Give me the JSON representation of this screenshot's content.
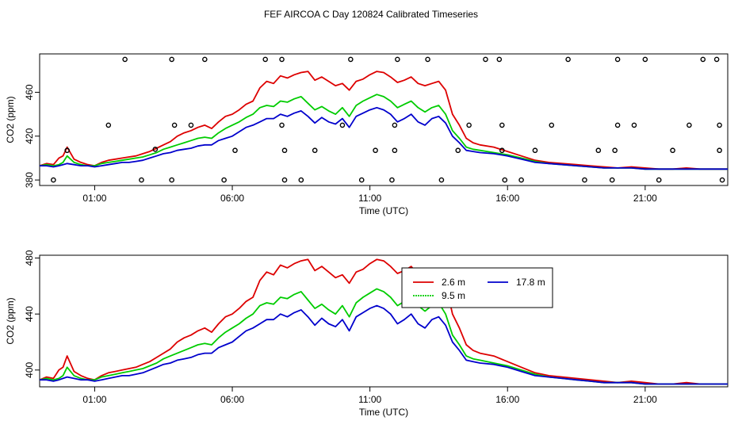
{
  "figure_title": "FEF AIRCOA C  Day 120824  Calibrated Timeseries",
  "colors": {
    "2.6 m": "#dd0000",
    "9.5 m": "#00cc00",
    "17.8 m": "#0000cc",
    "flags": "#000000"
  },
  "chart_data": [
    {
      "type": "line",
      "title": "FEF AIRCOA C  Day 120824  Calibrated Timeseries",
      "xlabel": "Time (UTC)",
      "ylabel": "CO2 (ppm)",
      "x_tick_labels": [
        "01:00",
        "06:00",
        "11:00",
        "16:00",
        "21:00"
      ],
      "x_ticks": [
        1,
        6,
        11,
        16,
        21
      ],
      "y_tick_labels": [
        "380",
        "420",
        "460"
      ],
      "y_ticks": [
        380,
        420,
        460
      ],
      "xlim": [
        -1.0,
        24.0
      ],
      "ylim": [
        375,
        495
      ],
      "series_ref": "shared_series",
      "flags": {
        "description": "open-circle flag markers",
        "points": [
          [
            -0.5,
            380
          ],
          [
            1.5,
            430
          ],
          [
            0.0,
            407
          ],
          [
            2.1,
            490
          ],
          [
            2.7,
            380
          ],
          [
            3.2,
            408
          ],
          [
            3.8,
            380
          ],
          [
            3.8,
            490
          ],
          [
            3.9,
            430
          ],
          [
            4.5,
            430
          ],
          [
            5.0,
            490
          ],
          [
            5.7,
            380
          ],
          [
            6.1,
            407
          ],
          [
            7.2,
            490
          ],
          [
            7.8,
            490
          ],
          [
            7.8,
            430
          ],
          [
            7.9,
            407
          ],
          [
            7.9,
            380
          ],
          [
            8.5,
            380
          ],
          [
            9.0,
            407
          ],
          [
            10.0,
            430
          ],
          [
            10.3,
            490
          ],
          [
            10.7,
            380
          ],
          [
            11.2,
            407
          ],
          [
            11.8,
            380
          ],
          [
            11.9,
            407
          ],
          [
            11.9,
            430
          ],
          [
            12.0,
            490
          ],
          [
            13.1,
            490
          ],
          [
            13.6,
            380
          ],
          [
            14.2,
            407
          ],
          [
            14.6,
            430
          ],
          [
            15.2,
            490
          ],
          [
            15.7,
            490
          ],
          [
            15.8,
            430
          ],
          [
            15.8,
            407
          ],
          [
            15.9,
            380
          ],
          [
            16.5,
            380
          ],
          [
            17.0,
            407
          ],
          [
            17.6,
            430
          ],
          [
            18.2,
            490
          ],
          [
            18.8,
            380
          ],
          [
            19.3,
            407
          ],
          [
            19.8,
            380
          ],
          [
            19.9,
            407
          ],
          [
            20.0,
            430
          ],
          [
            20.0,
            490
          ],
          [
            20.6,
            430
          ],
          [
            21.0,
            490
          ],
          [
            21.5,
            380
          ],
          [
            22.0,
            407
          ],
          [
            22.6,
            430
          ],
          [
            23.1,
            490
          ],
          [
            23.6,
            490
          ],
          [
            23.7,
            430
          ],
          [
            23.7,
            407
          ],
          [
            23.8,
            380
          ]
        ]
      }
    },
    {
      "type": "line",
      "xlabel": "Time (UTC)",
      "ylabel": "CO2 (ppm)",
      "x_tick_labels": [
        "01:00",
        "06:00",
        "11:00",
        "16:00",
        "21:00"
      ],
      "x_ticks": [
        1,
        6,
        11,
        16,
        21
      ],
      "y_tick_labels": [
        "400",
        "440",
        "480"
      ],
      "y_ticks": [
        400,
        440,
        480
      ],
      "xlim": [
        -1.0,
        24.0
      ],
      "ylim": [
        388,
        482
      ],
      "series_ref": "shared_series",
      "legend": {
        "placement": "top-right-inside",
        "entries": [
          "2.6 m",
          "17.8 m",
          "9.5 m"
        ]
      }
    }
  ],
  "shared_series": {
    "x": [
      -1.0,
      -0.75,
      -0.5,
      -0.3,
      -0.15,
      0.0,
      0.25,
      0.5,
      0.75,
      1.0,
      1.25,
      1.5,
      1.75,
      2.0,
      2.25,
      2.5,
      2.75,
      3.0,
      3.25,
      3.5,
      3.75,
      4.0,
      4.25,
      4.5,
      4.75,
      5.0,
      5.25,
      5.5,
      5.75,
      6.0,
      6.25,
      6.5,
      6.75,
      7.0,
      7.25,
      7.5,
      7.75,
      8.0,
      8.25,
      8.5,
      8.75,
      9.0,
      9.25,
      9.5,
      9.75,
      10.0,
      10.25,
      10.5,
      10.75,
      11.0,
      11.25,
      11.5,
      11.75,
      12.0,
      12.25,
      12.5,
      12.75,
      13.0,
      13.25,
      13.5,
      13.75,
      14.0,
      14.25,
      14.5,
      14.75,
      15.0,
      15.5,
      16.0,
      16.5,
      17.0,
      17.5,
      18.0,
      18.5,
      19.0,
      19.5,
      20.0,
      20.5,
      21.0,
      21.5,
      22.0,
      22.5,
      23.0,
      23.5,
      24.0
    ],
    "series": [
      {
        "name": "2.6 m",
        "color": "#dd0000",
        "values": [
          393,
          395,
          394,
          400,
          402,
          410,
          399,
          396,
          394,
          393,
          396,
          398,
          399,
          400,
          401,
          402,
          404,
          406,
          409,
          412,
          415,
          420,
          423,
          425,
          428,
          430,
          427,
          433,
          438,
          440,
          444,
          449,
          452,
          464,
          470,
          468,
          475,
          473,
          476,
          478,
          479,
          471,
          474,
          470,
          466,
          468,
          462,
          470,
          472,
          476,
          479,
          478,
          474,
          469,
          471,
          474,
          468,
          466,
          468,
          470,
          462,
          440,
          430,
          418,
          414,
          412,
          410,
          406,
          402,
          398,
          396,
          395,
          394,
          393,
          392,
          391,
          392,
          391,
          390,
          390,
          391,
          390,
          390,
          390
        ]
      },
      {
        "name": "9.5 m",
        "color": "#00cc00",
        "values": [
          393,
          394,
          393,
          394,
          396,
          402,
          396,
          394,
          393,
          393,
          395,
          396,
          397,
          398,
          399,
          400,
          401,
          403,
          405,
          408,
          410,
          412,
          414,
          416,
          418,
          419,
          418,
          423,
          427,
          430,
          433,
          437,
          440,
          446,
          448,
          447,
          452,
          451,
          454,
          456,
          450,
          444,
          447,
          443,
          440,
          446,
          438,
          448,
          452,
          455,
          458,
          456,
          452,
          446,
          449,
          452,
          446,
          442,
          446,
          448,
          440,
          425,
          418,
          410,
          408,
          407,
          405,
          403,
          400,
          397,
          395,
          394,
          393,
          392,
          391,
          391,
          391,
          390,
          390,
          390,
          390,
          390,
          390,
          390
        ]
      },
      {
        "name": "17.8 m",
        "color": "#0000cc",
        "values": [
          393,
          393,
          392,
          393,
          394,
          395,
          394,
          393,
          393,
          392,
          393,
          394,
          395,
          396,
          396,
          397,
          398,
          400,
          402,
          404,
          405,
          407,
          408,
          409,
          411,
          412,
          412,
          416,
          418,
          420,
          424,
          428,
          430,
          433,
          436,
          436,
          440,
          438,
          441,
          443,
          438,
          432,
          437,
          433,
          431,
          436,
          428,
          438,
          441,
          444,
          446,
          444,
          440,
          433,
          436,
          440,
          433,
          430,
          436,
          438,
          432,
          420,
          414,
          407,
          406,
          405,
          404,
          402,
          399,
          396,
          395,
          394,
          393,
          392,
          391,
          391,
          391,
          390,
          390,
          390,
          390,
          390,
          390,
          390
        ]
      }
    ]
  }
}
